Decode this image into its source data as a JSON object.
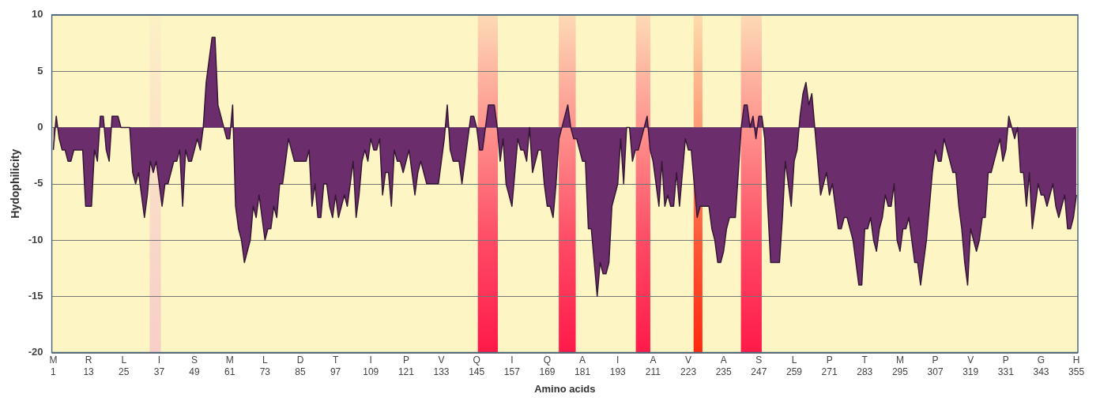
{
  "chart_data": {
    "type": "area",
    "ylabel": "Hydophilicity",
    "xlabel": "Amino acids",
    "categories": [
      "M\n1",
      null,
      null,
      null,
      null,
      null,
      null,
      null,
      null,
      null,
      null,
      null,
      "R\n13",
      null,
      null,
      null,
      null,
      null,
      null,
      null,
      null,
      null,
      null,
      null,
      "L\n25",
      null,
      null,
      null,
      null,
      null,
      null,
      null,
      null,
      null,
      null,
      null,
      "I\n37",
      null,
      null,
      null,
      null,
      null,
      null,
      null,
      null,
      null,
      null,
      null,
      "S\n49",
      null,
      null,
      null,
      null,
      null,
      null,
      null,
      null,
      null,
      null,
      null,
      "M\n61",
      null,
      null,
      null,
      null,
      null,
      null,
      null,
      null,
      null,
      null,
      null,
      "L\n73",
      null,
      null,
      null,
      null,
      null,
      null,
      null,
      null,
      null,
      null,
      null,
      "D\n85",
      null,
      null,
      null,
      null,
      null,
      null,
      null,
      null,
      null,
      null,
      null,
      "T\n97",
      null,
      null,
      null,
      null,
      null,
      null,
      null,
      null,
      null,
      null,
      null,
      "I\n109",
      null,
      null,
      null,
      null,
      null,
      null,
      null,
      null,
      null,
      null,
      null,
      "P\n121",
      null,
      null,
      null,
      null,
      null,
      null,
      null,
      null,
      null,
      null,
      null,
      "V\n133",
      null,
      null,
      null,
      null,
      null,
      null,
      null,
      null,
      null,
      null,
      null,
      "Q\n145",
      null,
      null,
      null,
      null,
      null,
      null,
      null,
      null,
      null,
      null,
      null,
      "I\n157",
      null,
      null,
      null,
      null,
      null,
      null,
      null,
      null,
      null,
      null,
      null,
      "Q\n169",
      null,
      null,
      null,
      null,
      null,
      null,
      null,
      null,
      null,
      null,
      null,
      "A\n181",
      null,
      null,
      null,
      null,
      null,
      null,
      null,
      null,
      null,
      null,
      null,
      "I\n193",
      null,
      null,
      null,
      null,
      null,
      null,
      null,
      null,
      null,
      null,
      null,
      "A\n211",
      null,
      null,
      null,
      null,
      null,
      null,
      null,
      null,
      null,
      null,
      null,
      "V\n223",
      null,
      null,
      null,
      null,
      null,
      null,
      null,
      null,
      null,
      null,
      null,
      "A\n235",
      null,
      null,
      null,
      null,
      null,
      null,
      null,
      null,
      null,
      null,
      null,
      "S\n247",
      null,
      null,
      null,
      null,
      null,
      null,
      null,
      null,
      null,
      null,
      null,
      "L\n259",
      null,
      null,
      null,
      null,
      null,
      null,
      null,
      null,
      null,
      null,
      null,
      "P\n271",
      null,
      null,
      null,
      null,
      null,
      null,
      null,
      null,
      null,
      null,
      null,
      "T\n283",
      null,
      null,
      null,
      null,
      null,
      null,
      null,
      null,
      null,
      null,
      null,
      "M\n295",
      null,
      null,
      null,
      null,
      null,
      null,
      null,
      null,
      null,
      null,
      null,
      "P\n307",
      null,
      null,
      null,
      null,
      null,
      null,
      null,
      null,
      null,
      null,
      null,
      "V\n319",
      null,
      null,
      null,
      null,
      null,
      null,
      null,
      null,
      null,
      null,
      null,
      "P\n331",
      null,
      null,
      null,
      null,
      null,
      null,
      null,
      null,
      null,
      null,
      null,
      "G\n343",
      null,
      null,
      null,
      null,
      null,
      null,
      null,
      null,
      null,
      null,
      null,
      "H\n355"
    ],
    "series": [
      {
        "color": "#6b2d6b",
        "values": [
          -2,
          1,
          -1,
          -2,
          -2,
          -3,
          -3,
          -2,
          -2,
          -2,
          -2,
          -7,
          -7,
          -7,
          -2,
          -3,
          1,
          1,
          -2,
          -3,
          1,
          1,
          1,
          0,
          0,
          0,
          0,
          -4,
          -5,
          -4,
          -6,
          -8,
          -6,
          -3,
          -4,
          -3,
          -5,
          -7,
          -5,
          -5,
          -4,
          -3,
          -3,
          -2,
          -7,
          -2,
          -3,
          -3,
          -2,
          -1,
          -2,
          0,
          4,
          6,
          8,
          8,
          2,
          1,
          0,
          -1,
          -1,
          2,
          -7,
          -9,
          -10,
          -12,
          -11,
          -10,
          -7,
          -8,
          -6,
          -8,
          -10,
          -9,
          -9,
          -7,
          -8,
          -5,
          -5,
          -3,
          -1,
          -2,
          -3,
          -3,
          -3,
          -3,
          -3,
          -2,
          -7,
          -5,
          -8,
          -8,
          -5,
          -5,
          -7,
          -8,
          -6,
          -8,
          -7,
          -6,
          -7,
          -5,
          -3,
          -8,
          -6,
          -3,
          -2,
          -3,
          -1,
          -2,
          -2,
          -1,
          -6,
          -4,
          -4,
          -7,
          -2,
          -3,
          -3,
          -4,
          -3,
          -2,
          -4,
          -6,
          -4,
          -3,
          -4,
          -5,
          -5,
          -5,
          -5,
          -5,
          -3,
          -1,
          2,
          -2,
          -3,
          -3,
          -3,
          -5,
          -3,
          -1,
          1,
          1,
          0,
          -2,
          -2,
          0,
          2,
          2,
          2,
          0,
          -3,
          -1,
          -5,
          -6,
          -7,
          -4,
          -1,
          -2,
          -2,
          -3,
          0,
          -4,
          -3,
          -2,
          -2,
          -5,
          -7,
          -7,
          -8,
          -5,
          -1,
          0,
          1,
          2,
          0,
          -1,
          -1,
          -2,
          -3,
          -3,
          -9,
          -9,
          -12,
          -15,
          -12,
          -13,
          -13,
          -12,
          -7,
          -6,
          -5,
          -1,
          -5,
          0,
          0,
          -3,
          -2,
          -2,
          -1,
          0,
          1,
          -2,
          -3,
          -5,
          -7,
          -3,
          -7,
          -6,
          -7,
          -7,
          -4,
          -7,
          -4,
          -1,
          -2,
          -2,
          -5,
          -8,
          -7,
          -7,
          -7,
          -7,
          -9,
          -10,
          -12,
          -12,
          -11,
          -9,
          -8,
          -8,
          -8,
          -4,
          0,
          2,
          2,
          0,
          1,
          -1,
          1,
          1,
          -1,
          -7,
          -12,
          -12,
          -12,
          -12,
          -8,
          -3,
          -5,
          -7,
          -3,
          -2,
          1,
          3,
          4,
          2,
          3,
          0,
          -3,
          -6,
          -5,
          -4,
          -6,
          -5,
          -7,
          -9,
          -9,
          -8,
          -8,
          -9,
          -10,
          -12,
          -14,
          -14,
          -9,
          -9,
          -8,
          -10,
          -11,
          -9,
          -8,
          -6,
          -7,
          -7,
          -5,
          -10,
          -11,
          -9,
          -9,
          -8,
          -10,
          -12,
          -12,
          -14,
          -12,
          -10,
          -7,
          -4,
          -2,
          -3,
          -3,
          -1,
          -2,
          -3,
          -4,
          -4,
          -7,
          -9,
          -12,
          -14,
          -9,
          -10,
          -11,
          -10,
          -8,
          -8,
          -4,
          -4,
          -3,
          -2,
          -1,
          -3,
          -2,
          1,
          0,
          -1,
          0,
          -4,
          -4,
          -7,
          -4,
          -9,
          -7,
          -5,
          -6,
          -6,
          -7,
          -6,
          -5,
          -7,
          -8,
          -7,
          -6,
          -9,
          -9,
          -8,
          -6
        ]
      }
    ],
    "ylim": [
      -20,
      10
    ],
    "yticks": [
      -20,
      -15,
      -10,
      -5,
      0,
      5,
      10
    ],
    "grid": "y"
  }
}
